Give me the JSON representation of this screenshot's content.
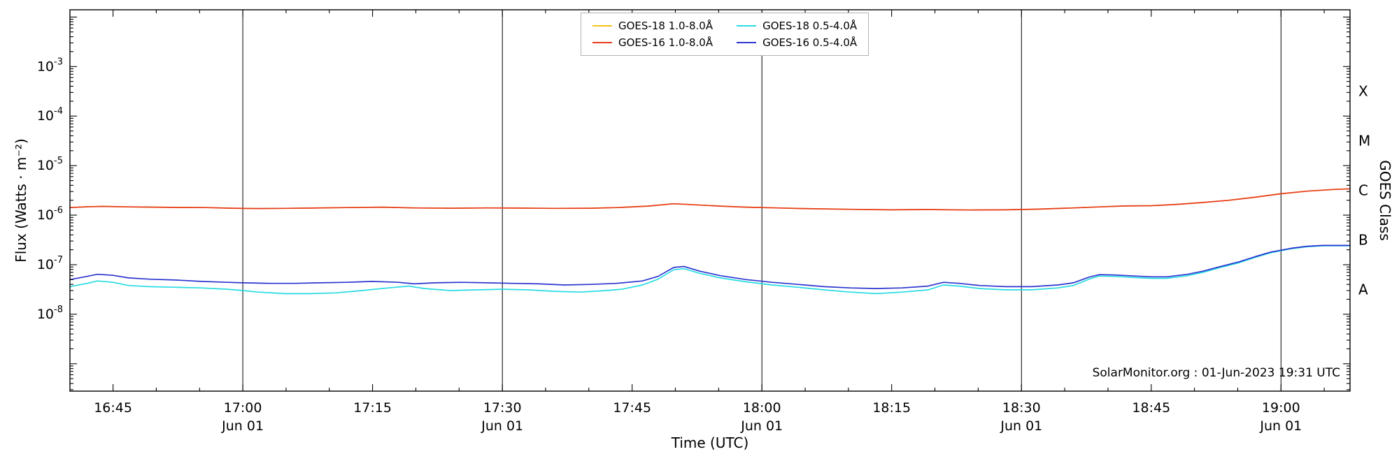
{
  "chart_data": {
    "type": "line",
    "title": "",
    "xlabel": "Time (UTC)",
    "ylabel": "Flux (Watts · m⁻²)",
    "ylabel_right": "GOES Class",
    "annotation": "SolarMonitor.org : 01-Jun-2023 19:31 UTC",
    "grid": "vertical-only",
    "legend_position": "top-center",
    "x_domain_hours": [
      16.667,
      19.133
    ],
    "ylim": [
      2.8e-10,
      0.014
    ],
    "x_gridlines_hours": [
      17.0,
      17.5,
      18.0,
      18.5,
      19.0
    ],
    "x_ticks": [
      {
        "hours": 16.75,
        "label": "16:45"
      },
      {
        "hours": 17.0,
        "label": "17:00",
        "sublabel": "Jun 01"
      },
      {
        "hours": 17.25,
        "label": "17:15"
      },
      {
        "hours": 17.5,
        "label": "17:30",
        "sublabel": "Jun 01"
      },
      {
        "hours": 17.75,
        "label": "17:45"
      },
      {
        "hours": 18.0,
        "label": "18:00",
        "sublabel": "Jun 01"
      },
      {
        "hours": 18.25,
        "label": "18:15"
      },
      {
        "hours": 18.5,
        "label": "18:30",
        "sublabel": "Jun 01"
      },
      {
        "hours": 18.75,
        "label": "18:45"
      },
      {
        "hours": 19.0,
        "label": "19:00",
        "sublabel": "Jun 01"
      }
    ],
    "y_ticks": [
      {
        "exp": -3,
        "base": "10",
        "sup": "-3"
      },
      {
        "exp": -4,
        "base": "10",
        "sup": "-4"
      },
      {
        "exp": -5,
        "base": "10",
        "sup": "-5"
      },
      {
        "exp": -6,
        "base": "10",
        "sup": "-6"
      },
      {
        "exp": -7,
        "base": "10",
        "sup": "-7"
      },
      {
        "exp": -8,
        "base": "10",
        "sup": "-8"
      }
    ],
    "goes_classes": [
      {
        "label": "X",
        "exp_center": -3.5
      },
      {
        "label": "M",
        "exp_center": -4.5
      },
      {
        "label": "C",
        "exp_center": -5.5
      },
      {
        "label": "B",
        "exp_center": -6.5
      },
      {
        "label": "A",
        "exp_center": -7.5
      }
    ],
    "legend": [
      {
        "label": "GOES-18 1.0-8.0Å",
        "color": "#f2c318"
      },
      {
        "label": "GOES-16 1.0-8.0Å",
        "color": "#e73a1e"
      },
      {
        "label": "GOES-18 0.5-4.0Å",
        "color": "#26dbe2"
      },
      {
        "label": "GOES-16 0.5-4.0Å",
        "color": "#2c35cf"
      }
    ],
    "series": [
      {
        "id": "goes18-long",
        "name": "GOES-18 1.0-8.0Å",
        "color": "#f2c318",
        "points": [
          [
            16.667,
            1.42e-06
          ],
          [
            16.7,
            1.48e-06
          ],
          [
            16.73,
            1.5e-06
          ],
          [
            16.78,
            1.47e-06
          ],
          [
            16.83,
            1.45e-06
          ],
          [
            16.88,
            1.43e-06
          ],
          [
            16.93,
            1.42e-06
          ],
          [
            16.98,
            1.38e-06
          ],
          [
            17.03,
            1.36e-06
          ],
          [
            17.08,
            1.37e-06
          ],
          [
            17.13,
            1.39e-06
          ],
          [
            17.2,
            1.42e-06
          ],
          [
            17.27,
            1.45e-06
          ],
          [
            17.33,
            1.4e-06
          ],
          [
            17.4,
            1.38e-06
          ],
          [
            17.47,
            1.4e-06
          ],
          [
            17.53,
            1.39e-06
          ],
          [
            17.6,
            1.37e-06
          ],
          [
            17.67,
            1.38e-06
          ],
          [
            17.72,
            1.42e-06
          ],
          [
            17.78,
            1.52e-06
          ],
          [
            17.83,
            1.7e-06
          ],
          [
            17.87,
            1.62e-06
          ],
          [
            17.92,
            1.52e-06
          ],
          [
            17.97,
            1.45e-06
          ],
          [
            18.03,
            1.4e-06
          ],
          [
            18.08,
            1.36e-06
          ],
          [
            18.17,
            1.31e-06
          ],
          [
            18.25,
            1.28e-06
          ],
          [
            18.32,
            1.3e-06
          ],
          [
            18.4,
            1.27e-06
          ],
          [
            18.47,
            1.28e-06
          ],
          [
            18.53,
            1.32e-06
          ],
          [
            18.6,
            1.4e-06
          ],
          [
            18.65,
            1.47e-06
          ],
          [
            18.7,
            1.53e-06
          ],
          [
            18.75,
            1.55e-06
          ],
          [
            18.8,
            1.65e-06
          ],
          [
            18.85,
            1.8e-06
          ],
          [
            18.9,
            2e-06
          ],
          [
            18.95,
            2.3e-06
          ],
          [
            19.0,
            2.7e-06
          ],
          [
            19.05,
            3.05e-06
          ],
          [
            19.1,
            3.3e-06
          ],
          [
            19.133,
            3.4e-06
          ]
        ]
      },
      {
        "id": "goes16-long",
        "name": "GOES-16 1.0-8.0Å",
        "color": "#e73a1e",
        "points": [
          [
            16.667,
            1.42e-06
          ],
          [
            16.7,
            1.48e-06
          ],
          [
            16.73,
            1.5e-06
          ],
          [
            16.78,
            1.47e-06
          ],
          [
            16.83,
            1.45e-06
          ],
          [
            16.88,
            1.43e-06
          ],
          [
            16.93,
            1.42e-06
          ],
          [
            16.98,
            1.38e-06
          ],
          [
            17.03,
            1.36e-06
          ],
          [
            17.08,
            1.37e-06
          ],
          [
            17.13,
            1.39e-06
          ],
          [
            17.2,
            1.42e-06
          ],
          [
            17.27,
            1.45e-06
          ],
          [
            17.33,
            1.4e-06
          ],
          [
            17.4,
            1.38e-06
          ],
          [
            17.47,
            1.4e-06
          ],
          [
            17.53,
            1.39e-06
          ],
          [
            17.6,
            1.37e-06
          ],
          [
            17.67,
            1.38e-06
          ],
          [
            17.72,
            1.42e-06
          ],
          [
            17.78,
            1.52e-06
          ],
          [
            17.83,
            1.7e-06
          ],
          [
            17.87,
            1.62e-06
          ],
          [
            17.92,
            1.52e-06
          ],
          [
            17.97,
            1.45e-06
          ],
          [
            18.03,
            1.4e-06
          ],
          [
            18.08,
            1.36e-06
          ],
          [
            18.17,
            1.31e-06
          ],
          [
            18.25,
            1.28e-06
          ],
          [
            18.32,
            1.3e-06
          ],
          [
            18.4,
            1.27e-06
          ],
          [
            18.47,
            1.28e-06
          ],
          [
            18.53,
            1.32e-06
          ],
          [
            18.6,
            1.4e-06
          ],
          [
            18.65,
            1.47e-06
          ],
          [
            18.7,
            1.53e-06
          ],
          [
            18.75,
            1.55e-06
          ],
          [
            18.8,
            1.65e-06
          ],
          [
            18.85,
            1.8e-06
          ],
          [
            18.9,
            2e-06
          ],
          [
            18.95,
            2.3e-06
          ],
          [
            19.0,
            2.7e-06
          ],
          [
            19.05,
            3.05e-06
          ],
          [
            19.1,
            3.3e-06
          ],
          [
            19.133,
            3.4e-06
          ]
        ]
      },
      {
        "id": "goes18-short",
        "name": "GOES-18 0.5-4.0Å",
        "color": "#26dbe2",
        "points": [
          [
            16.667,
            3.6e-08
          ],
          [
            16.7,
            4.2e-08
          ],
          [
            16.72,
            4.7e-08
          ],
          [
            16.75,
            4.4e-08
          ],
          [
            16.78,
            3.8e-08
          ],
          [
            16.82,
            3.6e-08
          ],
          [
            16.87,
            3.5e-08
          ],
          [
            16.92,
            3.4e-08
          ],
          [
            16.97,
            3.2e-08
          ],
          [
            17.0,
            3e-08
          ],
          [
            17.03,
            2.8e-08
          ],
          [
            17.08,
            2.6e-08
          ],
          [
            17.13,
            2.6e-08
          ],
          [
            17.18,
            2.7e-08
          ],
          [
            17.23,
            3e-08
          ],
          [
            17.28,
            3.4e-08
          ],
          [
            17.32,
            3.7e-08
          ],
          [
            17.35,
            3.3e-08
          ],
          [
            17.4,
            3e-08
          ],
          [
            17.45,
            3.1e-08
          ],
          [
            17.5,
            3.2e-08
          ],
          [
            17.55,
            3.1e-08
          ],
          [
            17.6,
            2.9e-08
          ],
          [
            17.65,
            2.8e-08
          ],
          [
            17.7,
            3e-08
          ],
          [
            17.73,
            3.2e-08
          ],
          [
            17.77,
            3.9e-08
          ],
          [
            17.8,
            5.1e-08
          ],
          [
            17.83,
            7.9e-08
          ],
          [
            17.85,
            8.3e-08
          ],
          [
            17.88,
            6.7e-08
          ],
          [
            17.92,
            5.4e-08
          ],
          [
            17.97,
            4.5e-08
          ],
          [
            18.02,
            3.9e-08
          ],
          [
            18.07,
            3.5e-08
          ],
          [
            18.12,
            3.1e-08
          ],
          [
            18.17,
            2.8e-08
          ],
          [
            18.22,
            2.6e-08
          ],
          [
            18.27,
            2.8e-08
          ],
          [
            18.32,
            3.1e-08
          ],
          [
            18.35,
            3.9e-08
          ],
          [
            18.38,
            3.7e-08
          ],
          [
            18.42,
            3.3e-08
          ],
          [
            18.47,
            3.1e-08
          ],
          [
            18.52,
            3.1e-08
          ],
          [
            18.57,
            3.4e-08
          ],
          [
            18.6,
            3.8e-08
          ],
          [
            18.63,
            5.1e-08
          ],
          [
            18.65,
            5.9e-08
          ],
          [
            18.68,
            5.8e-08
          ],
          [
            18.72,
            5.5e-08
          ],
          [
            18.75,
            5.3e-08
          ],
          [
            18.78,
            5.3e-08
          ],
          [
            18.82,
            6e-08
          ],
          [
            18.85,
            7e-08
          ],
          [
            18.88,
            8.6e-08
          ],
          [
            18.92,
            1.1e-07
          ],
          [
            18.95,
            1.4e-07
          ],
          [
            18.98,
            1.74e-07
          ],
          [
            19.02,
            2.1e-07
          ],
          [
            19.05,
            2.3e-07
          ],
          [
            19.08,
            2.41e-07
          ],
          [
            19.11,
            2.41e-07
          ],
          [
            19.133,
            2.41e-07
          ]
        ]
      },
      {
        "id": "goes16-short",
        "name": "GOES-16 0.5-4.0Å",
        "color": "#2c35cf",
        "points": [
          [
            16.667,
            5e-08
          ],
          [
            16.7,
            5.8e-08
          ],
          [
            16.72,
            6.4e-08
          ],
          [
            16.75,
            6.1e-08
          ],
          [
            16.78,
            5.4e-08
          ],
          [
            16.82,
            5.1e-08
          ],
          [
            16.87,
            4.9e-08
          ],
          [
            16.92,
            4.6e-08
          ],
          [
            16.97,
            4.4e-08
          ],
          [
            17.0,
            4.3e-08
          ],
          [
            17.05,
            4.2e-08
          ],
          [
            17.1,
            4.2e-08
          ],
          [
            17.15,
            4.3e-08
          ],
          [
            17.2,
            4.4e-08
          ],
          [
            17.25,
            4.6e-08
          ],
          [
            17.3,
            4.4e-08
          ],
          [
            17.33,
            4.1e-08
          ],
          [
            17.37,
            4.3e-08
          ],
          [
            17.42,
            4.4e-08
          ],
          [
            17.47,
            4.3e-08
          ],
          [
            17.52,
            4.2e-08
          ],
          [
            17.57,
            4.1e-08
          ],
          [
            17.62,
            3.9e-08
          ],
          [
            17.67,
            4e-08
          ],
          [
            17.72,
            4.2e-08
          ],
          [
            17.77,
            4.7e-08
          ],
          [
            17.8,
            5.8e-08
          ],
          [
            17.83,
            8.8e-08
          ],
          [
            17.85,
            9.2e-08
          ],
          [
            17.88,
            7.4e-08
          ],
          [
            17.92,
            6e-08
          ],
          [
            17.97,
            5e-08
          ],
          [
            18.02,
            4.4e-08
          ],
          [
            18.07,
            4e-08
          ],
          [
            18.12,
            3.6e-08
          ],
          [
            18.17,
            3.4e-08
          ],
          [
            18.22,
            3.3e-08
          ],
          [
            18.27,
            3.4e-08
          ],
          [
            18.32,
            3.7e-08
          ],
          [
            18.35,
            4.4e-08
          ],
          [
            18.38,
            4.2e-08
          ],
          [
            18.42,
            3.8e-08
          ],
          [
            18.47,
            3.6e-08
          ],
          [
            18.52,
            3.6e-08
          ],
          [
            18.57,
            3.9e-08
          ],
          [
            18.6,
            4.3e-08
          ],
          [
            18.63,
            5.6e-08
          ],
          [
            18.65,
            6.3e-08
          ],
          [
            18.68,
            6.2e-08
          ],
          [
            18.72,
            5.9e-08
          ],
          [
            18.75,
            5.7e-08
          ],
          [
            18.78,
            5.7e-08
          ],
          [
            18.82,
            6.4e-08
          ],
          [
            18.85,
            7.4e-08
          ],
          [
            18.88,
            9e-08
          ],
          [
            18.92,
            1.15e-07
          ],
          [
            18.95,
            1.45e-07
          ],
          [
            18.98,
            1.8e-07
          ],
          [
            19.02,
            2.15e-07
          ],
          [
            19.05,
            2.35e-07
          ],
          [
            19.08,
            2.45e-07
          ],
          [
            19.11,
            2.45e-07
          ],
          [
            19.133,
            2.45e-07
          ]
        ]
      }
    ]
  }
}
